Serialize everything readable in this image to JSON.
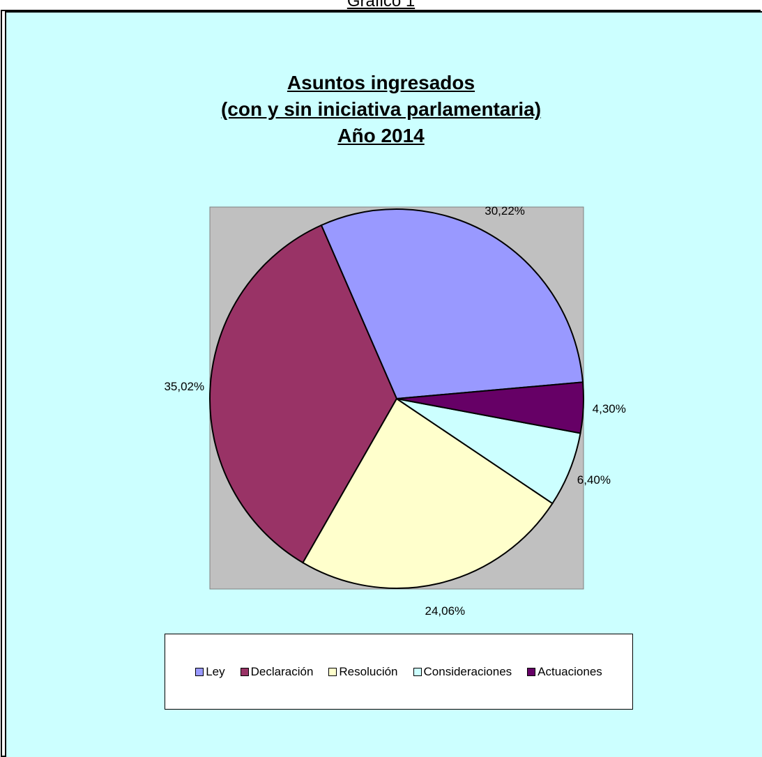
{
  "header": {
    "caption": "Gráfico 1"
  },
  "chart_data": {
    "type": "pie",
    "title_lines": [
      "Asuntos ingresados",
      "(con y sin iniciativa parlamentaria)",
      "Año 2014"
    ],
    "start_angle_deg": -5,
    "direction": "counterclockwise",
    "plot_background": "#c0c0c0",
    "legend_position": "bottom",
    "slices": [
      {
        "label": "Ley",
        "value": 30.22,
        "data_label": "30,22%",
        "color": "#9999ff"
      },
      {
        "label": "Declaración",
        "value": 35.02,
        "data_label": "35,02%",
        "color": "#993366"
      },
      {
        "label": "Resolución",
        "value": 24.06,
        "data_label": "24,06%",
        "color": "#ffffcc"
      },
      {
        "label": "Consideraciones",
        "value": 6.4,
        "data_label": "6,40%",
        "color": "#ccffff"
      },
      {
        "label": "Actuaciones",
        "value": 4.3,
        "data_label": "4,30%",
        "color": "#660066"
      }
    ]
  }
}
